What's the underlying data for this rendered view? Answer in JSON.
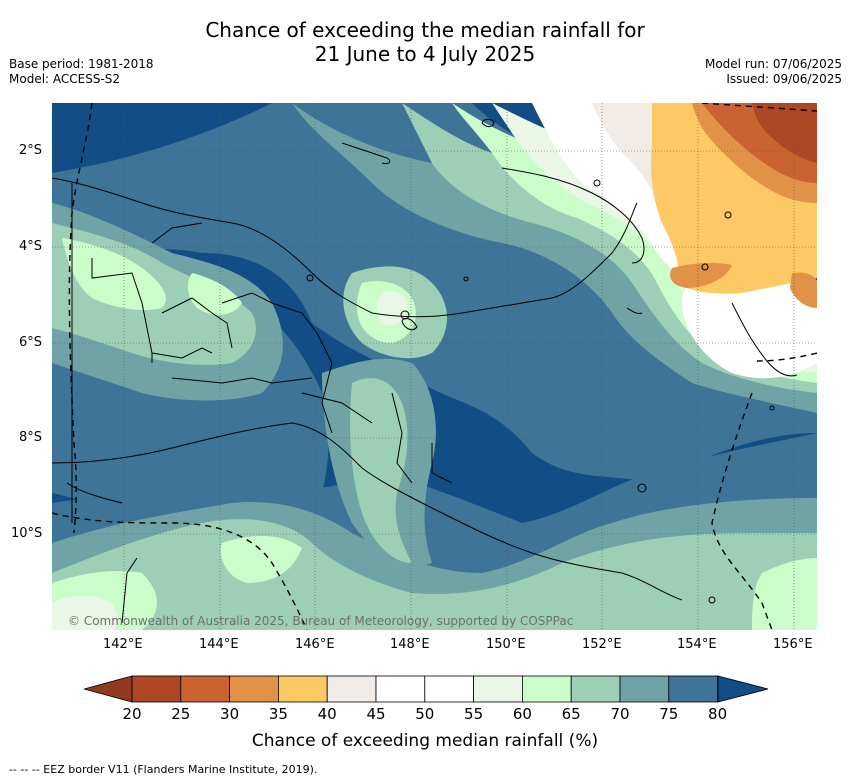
{
  "title": {
    "line1": "Chance of exceeding the median rainfall for",
    "line2": "21 June to 4 July 2025"
  },
  "meta_left": {
    "base_period": "Base period: 1981-2018",
    "model": "Model: ACCESS-S2"
  },
  "meta_right": {
    "model_run": "Model run: 07/06/2025",
    "issued": "Issued: 09/06/2025"
  },
  "map": {
    "lat_labels": [
      "2°S",
      "4°S",
      "6°S",
      "8°S",
      "10°S"
    ],
    "lon_labels": [
      "142°E",
      "144°E",
      "146°E",
      "148°E",
      "150°E",
      "152°E",
      "154°E",
      "156°E"
    ],
    "credit": "© Commonwealth of Australia 2025, Bureau of Meteorology, supported by COSPPac"
  },
  "colorbar": {
    "labels": [
      "20",
      "25",
      "30",
      "35",
      "40",
      "45",
      "50",
      "55",
      "60",
      "65",
      "70",
      "75",
      "80"
    ],
    "colors": [
      "#ae4726",
      "#cb6331",
      "#e19247",
      "#fdc964",
      "#f1ece7",
      "#ffffff",
      "#ffffff",
      "#eaf6e6",
      "#cbfdcb",
      "#9ccfb5",
      "#6fa3a5",
      "#3d7497"
    ],
    "low_extend_color": "#913a21",
    "high_extend_color": "#124d85",
    "title": "Chance of exceeding median rainfall (%)"
  },
  "footer": "-- -- -- EEZ border V11 (Flanders Marine Institute, 2019)."
}
